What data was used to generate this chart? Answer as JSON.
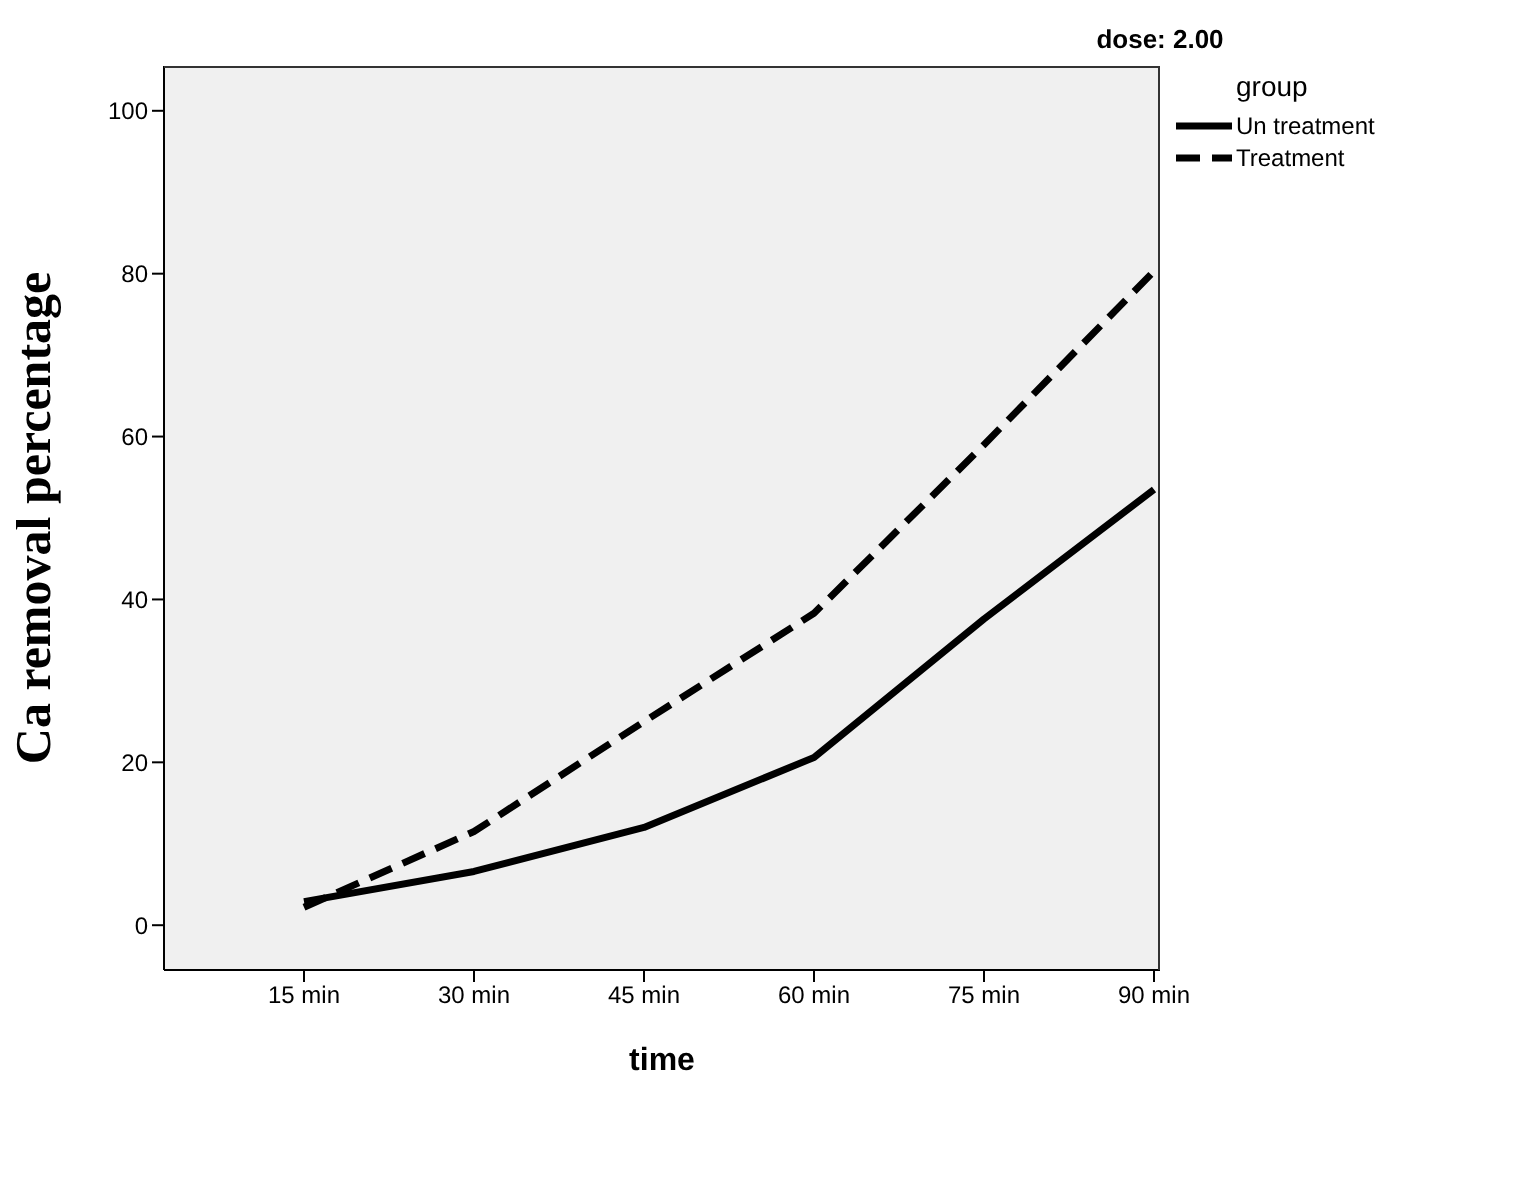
{
  "chart_data": {
    "type": "line",
    "title": "dose: 2.00",
    "xlabel": "time",
    "ylabel": "Ca removal percentage",
    "legend_title": "group",
    "categories": [
      "15 min",
      "30 min",
      "45 min",
      "60 min",
      "75 min",
      "90 min"
    ],
    "series": [
      {
        "name": "Un treatment",
        "color": "#000000",
        "line_style": "solid",
        "values": [
          2.9,
          6.6,
          12,
          20.6,
          37.6,
          53.5
        ]
      },
      {
        "name": "Treatment",
        "color": "#000000",
        "line_style": "dashed",
        "values": [
          2.2,
          11.5,
          25,
          38.3,
          59,
          80.3
        ]
      }
    ],
    "ylim": [
      -5.5,
      105.5
    ],
    "yticks": [
      0,
      20,
      40,
      60,
      80,
      100
    ],
    "grid": false,
    "legend": "top right",
    "marker": "none"
  }
}
